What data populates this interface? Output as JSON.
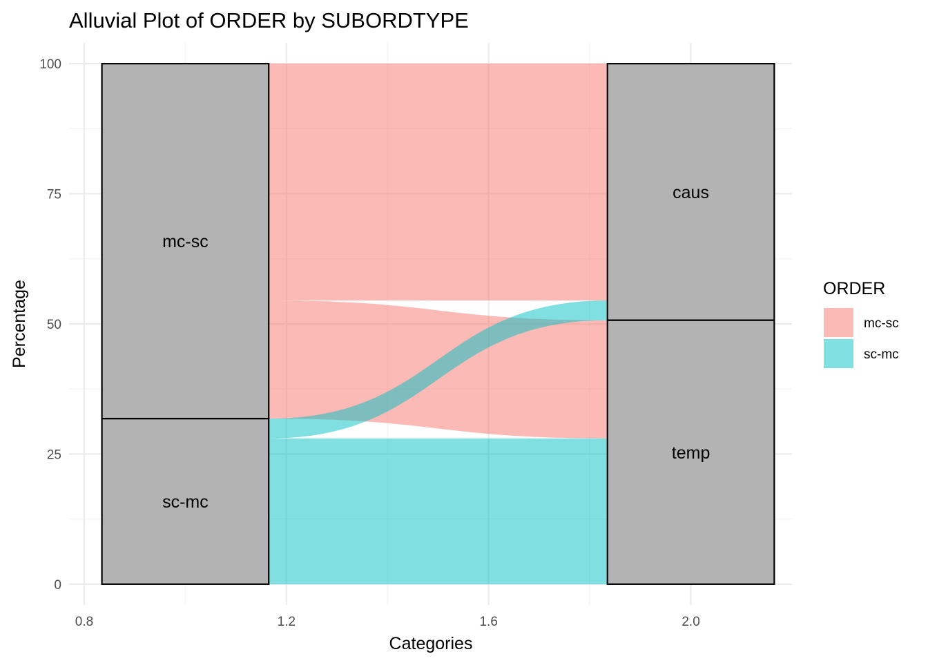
{
  "chart_data": {
    "type": "alluvial",
    "title": "Alluvial Plot of ORDER by SUBORDTYPE",
    "xlabel": "Categories",
    "ylabel": "Percentage",
    "xlim": [
      0.77,
      2.2
    ],
    "ylim": [
      -4,
      104
    ],
    "x_ticks": [
      0.8,
      1.2,
      1.6,
      2.0
    ],
    "x_tick_labels": [
      "0.8",
      "1.2",
      "1.6",
      "2.0"
    ],
    "y_ticks": [
      0,
      25,
      50,
      75,
      100
    ],
    "y_tick_labels": [
      "0",
      "25",
      "50",
      "75",
      "100"
    ],
    "grid": true,
    "legend_position": "right",
    "legend": {
      "title": "ORDER",
      "items": [
        {
          "label": "mc-sc",
          "color": "#F8766D"
        },
        {
          "label": "sc-mc",
          "color": "#00BFC4"
        }
      ]
    },
    "axes": [
      {
        "x": 1.0,
        "width": 0.33,
        "strata": [
          {
            "label": "mc-sc",
            "y0": 31.8,
            "y1": 100
          },
          {
            "label": "sc-mc",
            "y0": 0,
            "y1": 31.8
          }
        ]
      },
      {
        "x": 2.0,
        "width": 0.33,
        "strata": [
          {
            "label": "caus",
            "y0": 50.7,
            "y1": 100
          },
          {
            "label": "temp",
            "y0": 0,
            "y1": 50.7
          }
        ]
      }
    ],
    "flows": [
      {
        "order": "mc-sc",
        "from": "mc-sc",
        "to": "caus",
        "value": 45.5,
        "left": [
          54.5,
          100
        ],
        "right": [
          54.5,
          100
        ]
      },
      {
        "order": "mc-sc",
        "from": "mc-sc",
        "to": "temp",
        "value": 22.7,
        "left": [
          31.8,
          54.5
        ],
        "right": [
          28.0,
          50.7
        ]
      },
      {
        "order": "sc-mc",
        "from": "sc-mc",
        "to": "caus",
        "value": 3.8,
        "left": [
          28.0,
          31.8
        ],
        "right": [
          50.7,
          54.5
        ]
      },
      {
        "order": "sc-mc",
        "from": "sc-mc",
        "to": "temp",
        "value": 28.0,
        "left": [
          0,
          28.0
        ],
        "right": [
          0,
          28.0
        ]
      }
    ]
  }
}
